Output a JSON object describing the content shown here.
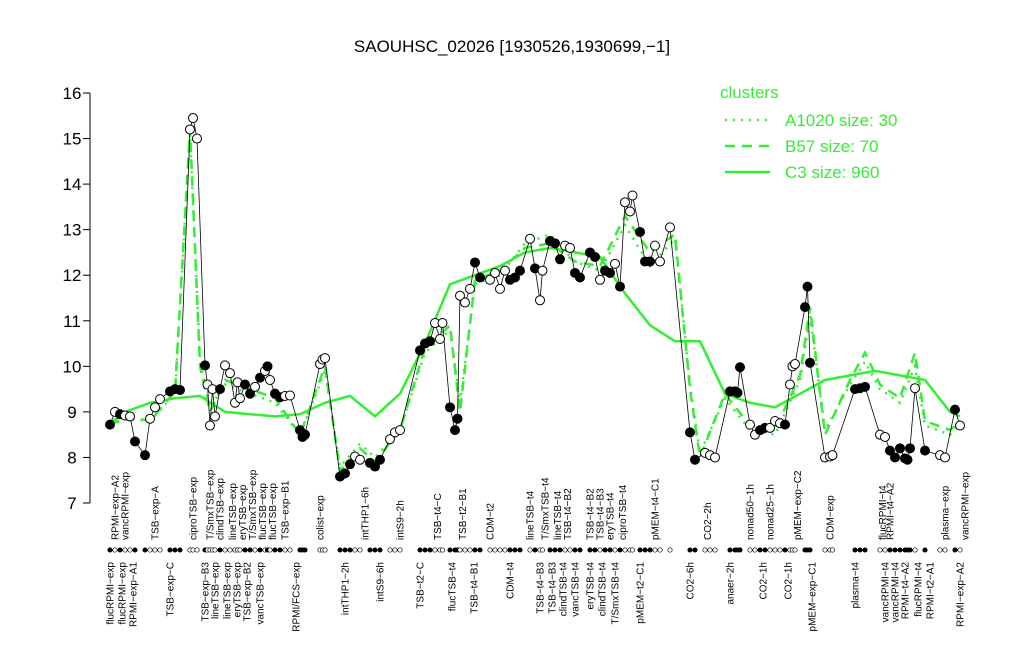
{
  "chart_data": {
    "type": "scatter",
    "title": "SAOUHSC_02026 [1930526,1930699,−1]",
    "ylim": [
      7,
      16
    ],
    "yticks": [
      7,
      8,
      9,
      10,
      11,
      12,
      13,
      14,
      15,
      16
    ],
    "xlim": [
      0,
      175
    ],
    "legend": {
      "title": "clusters",
      "position": "top-right"
    },
    "series": [
      {
        "name": "A1020 size: 30",
        "color": "#33ee33",
        "dash": "dotted",
        "x": [
          2,
          5,
          10,
          15,
          18,
          20,
          22,
          25,
          30,
          35,
          40,
          45,
          48,
          52,
          55,
          60,
          65,
          70,
          72,
          75,
          80,
          85,
          90,
          95,
          100,
          105,
          110,
          115,
          118,
          120,
          125,
          130,
          135,
          140,
          142,
          145,
          150,
          153,
          156,
          160,
          163,
          165,
          170,
          172
        ],
        "values": [
          8.7,
          8.85,
          8.8,
          9.4,
          15.1,
          10.1,
          9.1,
          9.6,
          9.4,
          9.2,
          8.5,
          9.9,
          7.8,
          8.3,
          8.0,
          8.6,
          10.3,
          10.8,
          9.2,
          11.8,
          12.0,
          12.7,
          12.9,
          12.3,
          12.1,
          13.1,
          12.2,
          12.8,
          9.6,
          8.1,
          9.3,
          8.6,
          8.5,
          9.7,
          11.1,
          8.6,
          9.6,
          10.1,
          9.5,
          9.2,
          10.0,
          8.7,
          8.5,
          8.8
        ]
      },
      {
        "name": "B57 size: 70",
        "color": "#33ee33",
        "dash": "dashed",
        "x": [
          2,
          5,
          10,
          15,
          18,
          20,
          22,
          25,
          30,
          35,
          40,
          45,
          48,
          52,
          55,
          60,
          65,
          70,
          72,
          75,
          80,
          85,
          90,
          95,
          100,
          105,
          110,
          115,
          118,
          120,
          125,
          130,
          135,
          140,
          142,
          145,
          150,
          153,
          156,
          160,
          163,
          165,
          170,
          172
        ],
        "values": [
          8.7,
          8.9,
          8.8,
          9.45,
          15.2,
          10.0,
          9.0,
          9.7,
          9.5,
          9.3,
          8.5,
          10.0,
          7.7,
          8.2,
          7.9,
          8.6,
          10.4,
          10.9,
          9.0,
          11.9,
          12.1,
          12.6,
          12.7,
          12.3,
          12.2,
          13.3,
          12.5,
          12.9,
          9.5,
          8.0,
          9.4,
          8.7,
          8.6,
          9.8,
          11.3,
          8.5,
          9.7,
          10.3,
          9.6,
          9.3,
          10.3,
          8.8,
          8.6,
          8.8
        ]
      },
      {
        "name": "C3 size: 960",
        "color": "#33ee33",
        "dash": "solid",
        "x": [
          2,
          5,
          10,
          15,
          20,
          25,
          30,
          35,
          40,
          45,
          50,
          55,
          60,
          65,
          70,
          75,
          80,
          85,
          90,
          95,
          100,
          105,
          110,
          115,
          120,
          125,
          130,
          135,
          140,
          145,
          150,
          155,
          160,
          165,
          170,
          172
        ],
        "values": [
          8.75,
          9.0,
          9.2,
          9.3,
          9.35,
          9.0,
          8.95,
          8.9,
          8.95,
          9.2,
          9.35,
          8.9,
          9.4,
          10.5,
          11.8,
          12.0,
          12.2,
          12.5,
          12.6,
          12.5,
          12.4,
          11.6,
          10.9,
          10.55,
          10.55,
          9.4,
          9.2,
          9.1,
          9.4,
          9.7,
          9.8,
          9.9,
          9.8,
          9.7,
          9.0,
          8.9
        ]
      }
    ],
    "points": {
      "x": [
        2,
        3,
        4,
        5,
        6,
        7,
        9,
        10,
        11,
        12,
        14,
        15,
        16,
        18,
        18.6,
        19.4,
        21,
        21.5,
        22,
        22.5,
        23,
        24,
        25,
        26,
        27,
        27.5,
        28,
        29,
        30,
        31,
        32,
        33,
        33.5,
        34,
        35,
        36,
        37,
        38,
        40,
        40.5,
        41,
        44,
        44.5,
        45,
        48,
        49,
        50,
        51,
        52,
        54,
        55,
        56,
        58,
        59,
        60,
        64,
        65,
        66,
        67,
        68,
        68.5,
        70,
        71,
        71.5,
        72,
        73,
        74,
        75,
        76,
        78,
        79,
        80,
        81,
        82,
        83,
        84,
        86,
        87,
        88,
        88.5,
        90,
        91,
        92,
        93,
        94,
        95,
        96,
        98,
        99,
        100,
        101,
        102,
        103,
        104,
        105,
        106,
        106.5,
        108,
        109,
        110,
        111,
        112,
        114,
        118,
        119,
        121,
        122,
        123,
        126,
        127,
        127.5,
        128,
        130,
        131,
        132,
        133,
        134,
        135,
        136,
        137,
        138,
        138.5,
        139,
        141,
        141.5,
        142,
        145,
        146,
        146.5,
        151,
        152,
        153,
        156,
        157,
        158,
        159,
        160,
        161,
        161.5,
        162,
        163,
        165,
        168,
        169,
        171,
        172
      ],
      "values": [
        8.72,
        9.0,
        8.95,
        8.92,
        8.9,
        8.35,
        8.05,
        8.85,
        9.1,
        9.28,
        9.45,
        9.5,
        9.48,
        15.2,
        15.45,
        15.0,
        10.02,
        9.6,
        8.7,
        9.5,
        8.9,
        9.5,
        10.02,
        9.85,
        9.2,
        9.65,
        9.3,
        9.6,
        9.4,
        9.55,
        9.75,
        9.9,
        10.0,
        9.7,
        9.4,
        9.32,
        9.35,
        9.36,
        8.6,
        8.45,
        8.5,
        10.05,
        10.15,
        10.18,
        7.58,
        7.65,
        7.85,
        8.02,
        7.95,
        7.88,
        7.8,
        7.95,
        8.4,
        8.55,
        8.6,
        10.35,
        10.5,
        10.55,
        10.95,
        10.6,
        10.95,
        9.1,
        8.6,
        8.85,
        11.55,
        11.4,
        11.7,
        12.28,
        11.95,
        11.9,
        12.05,
        11.7,
        12.1,
        11.9,
        11.95,
        12.1,
        12.8,
        12.15,
        11.45,
        12.1,
        12.75,
        12.7,
        12.35,
        12.65,
        12.6,
        12.05,
        11.95,
        12.5,
        12.4,
        11.9,
        12.1,
        12.05,
        12.25,
        11.75,
        13.6,
        13.4,
        13.75,
        12.95,
        12.3,
        12.3,
        12.65,
        12.3,
        13.05,
        8.55,
        7.95,
        8.1,
        8.05,
        8.0,
        9.45,
        9.45,
        9.42,
        9.98,
        8.72,
        8.5,
        8.6,
        8.65,
        8.65,
        8.8,
        8.75,
        8.72,
        9.6,
        10.0,
        10.05,
        11.3,
        11.75,
        10.08,
        8.0,
        8.02,
        8.05,
        9.5,
        9.52,
        9.55,
        8.5,
        8.45,
        8.15,
        8.0,
        8.2,
        7.98,
        7.95,
        8.2,
        9.52,
        8.15,
        8.05,
        8.0,
        9.05,
        8.7
      ],
      "filled": [
        1,
        0,
        1,
        0,
        0,
        1,
        1,
        0,
        0,
        0,
        1,
        1,
        1,
        0,
        0,
        0,
        1,
        0,
        0,
        0,
        0,
        1,
        0,
        0,
        0,
        0,
        0,
        1,
        1,
        0,
        1,
        0,
        1,
        0,
        1,
        1,
        0,
        0,
        1,
        1,
        1,
        0,
        0,
        0,
        1,
        1,
        1,
        0,
        0,
        1,
        1,
        1,
        0,
        0,
        0,
        1,
        1,
        1,
        0,
        0,
        0,
        1,
        1,
        1,
        0,
        0,
        0,
        1,
        1,
        0,
        0,
        0,
        0,
        1,
        1,
        1,
        0,
        1,
        0,
        0,
        1,
        1,
        1,
        0,
        0,
        1,
        1,
        1,
        1,
        0,
        1,
        1,
        0,
        1,
        0,
        0,
        0,
        1,
        1,
        1,
        0,
        0,
        0,
        1,
        1,
        0,
        0,
        0,
        1,
        1,
        1,
        1,
        0,
        0,
        1,
        1,
        0,
        0,
        0,
        1,
        0,
        0,
        0,
        1,
        1,
        1,
        0,
        0,
        0,
        1,
        1,
        1,
        0,
        0,
        1,
        1,
        1,
        1,
        1,
        1,
        0,
        1,
        0,
        0,
        1,
        0
      ]
    },
    "top_labels": [
      {
        "label": "RPMI−exp−A2",
        "x": 3
      },
      {
        "label": "vancRPMI−exp",
        "x": 5
      },
      {
        "label": "TSB−exp−A",
        "x": 11
      },
      {
        "label": "ciproTSB−exp",
        "x": 18.6
      },
      {
        "label": "T/SmxTSB−exp",
        "x": 22
      },
      {
        "label": "clindTSB−exp",
        "x": 24
      },
      {
        "label": "lineTSB−exp",
        "x": 26.5
      },
      {
        "label": "eryTSB−exp",
        "x": 28.5
      },
      {
        "label": "T/SmxTSB−exp",
        "x": 30.5
      },
      {
        "label": "flucTSB−exp",
        "x": 32.5
      },
      {
        "label": "flucTSB−exp",
        "x": 34.5
      },
      {
        "label": "TSB−exp−B1",
        "x": 37
      },
      {
        "label": "colist−exp",
        "x": 44
      },
      {
        "label": "intTHP1−6h",
        "x": 53
      },
      {
        "label": "intS9−2h",
        "x": 60
      },
      {
        "label": "TSB−t4−C",
        "x": 67.5
      },
      {
        "label": "TSB−t2−B1",
        "x": 72.5
      },
      {
        "label": "CDM−t2",
        "x": 78
      },
      {
        "label": "lineTSB−t4",
        "x": 86
      },
      {
        "label": "T/SmxTSB−t4",
        "x": 89
      },
      {
        "label": "lineTSB−t4",
        "x": 91.5
      },
      {
        "label": "TSB−t4−B2",
        "x": 93.5
      },
      {
        "label": "TSB−t4−B2",
        "x": 98
      },
      {
        "label": "TSB−t4−B3",
        "x": 100
      },
      {
        "label": "eryTSB−t4",
        "x": 102
      },
      {
        "label": "ciproTSB−t4",
        "x": 104.5
      },
      {
        "label": "pMEM−t4−C1",
        "x": 111
      },
      {
        "label": "CO2−2h",
        "x": 121.5
      },
      {
        "label": "nonad50−1h",
        "x": 130
      },
      {
        "label": "nonad25−1h",
        "x": 134
      },
      {
        "label": "pMEM−exp−C2",
        "x": 139.5
      },
      {
        "label": "CDM−exp",
        "x": 146
      },
      {
        "label": "flucRPMI−t4",
        "x": 156.5
      },
      {
        "label": "RPMI−t4−A2",
        "x": 158
      },
      {
        "label": "plasma−exp",
        "x": 169
      },
      {
        "label": "vancRPMI−exp",
        "x": 173
      }
    ],
    "bottom_labels": [
      {
        "label": "flucRPMI−exp",
        "x": 2
      },
      {
        "label": "flucRPMI−exp",
        "x": 4.4
      },
      {
        "label": "RPMI−exp−A1",
        "x": 6.6
      },
      {
        "label": "TSB−exp−C",
        "x": 14
      },
      {
        "label": "TSB−exp−B3",
        "x": 21
      },
      {
        "label": "lineTSB−exp",
        "x": 23
      },
      {
        "label": "lineTSB−exp",
        "x": 25.4
      },
      {
        "label": "eryTSB−exp",
        "x": 27.4
      },
      {
        "label": "TSB−exp−B2",
        "x": 29.4
      },
      {
        "label": "vancTSB−exp",
        "x": 32
      },
      {
        "label": "RPMI/FCS−exp",
        "x": 39.2
      },
      {
        "label": "intTHP1−2h",
        "x": 49
      },
      {
        "label": "intS9−6h",
        "x": 56
      },
      {
        "label": "TSB−t2−C",
        "x": 64
      },
      {
        "label": "flucTSB−t4",
        "x": 70.4
      },
      {
        "label": "TSB−t4−B1",
        "x": 74.8
      },
      {
        "label": "CDM−t4",
        "x": 82
      },
      {
        "label": "TSB−t4−B3",
        "x": 88
      },
      {
        "label": "TSB−t4−B3",
        "x": 90.4
      },
      {
        "label": "clindTSB−t4",
        "x": 92.6
      },
      {
        "label": "vancTSB−t4",
        "x": 95
      },
      {
        "label": "eryTSB−t4",
        "x": 98
      },
      {
        "label": "clindTSB−t4",
        "x": 100.4
      },
      {
        "label": "T/SmxTSB−t4",
        "x": 103
      },
      {
        "label": "pMEM−t2−C1",
        "x": 108
      },
      {
        "label": "CO2−6h",
        "x": 118
      },
      {
        "label": "anaer−2h",
        "x": 126
      },
      {
        "label": "CO2−1h",
        "x": 132.6
      },
      {
        "label": "CO2−1h",
        "x": 137.6
      },
      {
        "label": "pMEM−exp−C1",
        "x": 142.4
      },
      {
        "label": "plasma−t4",
        "x": 151
      },
      {
        "label": "vancRPMI−t4",
        "x": 157
      },
      {
        "label": "vancRPMI−t4",
        "x": 159
      },
      {
        "label": "RPMI−t4−A2",
        "x": 161
      },
      {
        "label": "flucRPMI−t4",
        "x": 163.6
      },
      {
        "label": "RPMI−t2−A1",
        "x": 166
      },
      {
        "label": "RPMI−exp−A2",
        "x": 172
      }
    ]
  }
}
